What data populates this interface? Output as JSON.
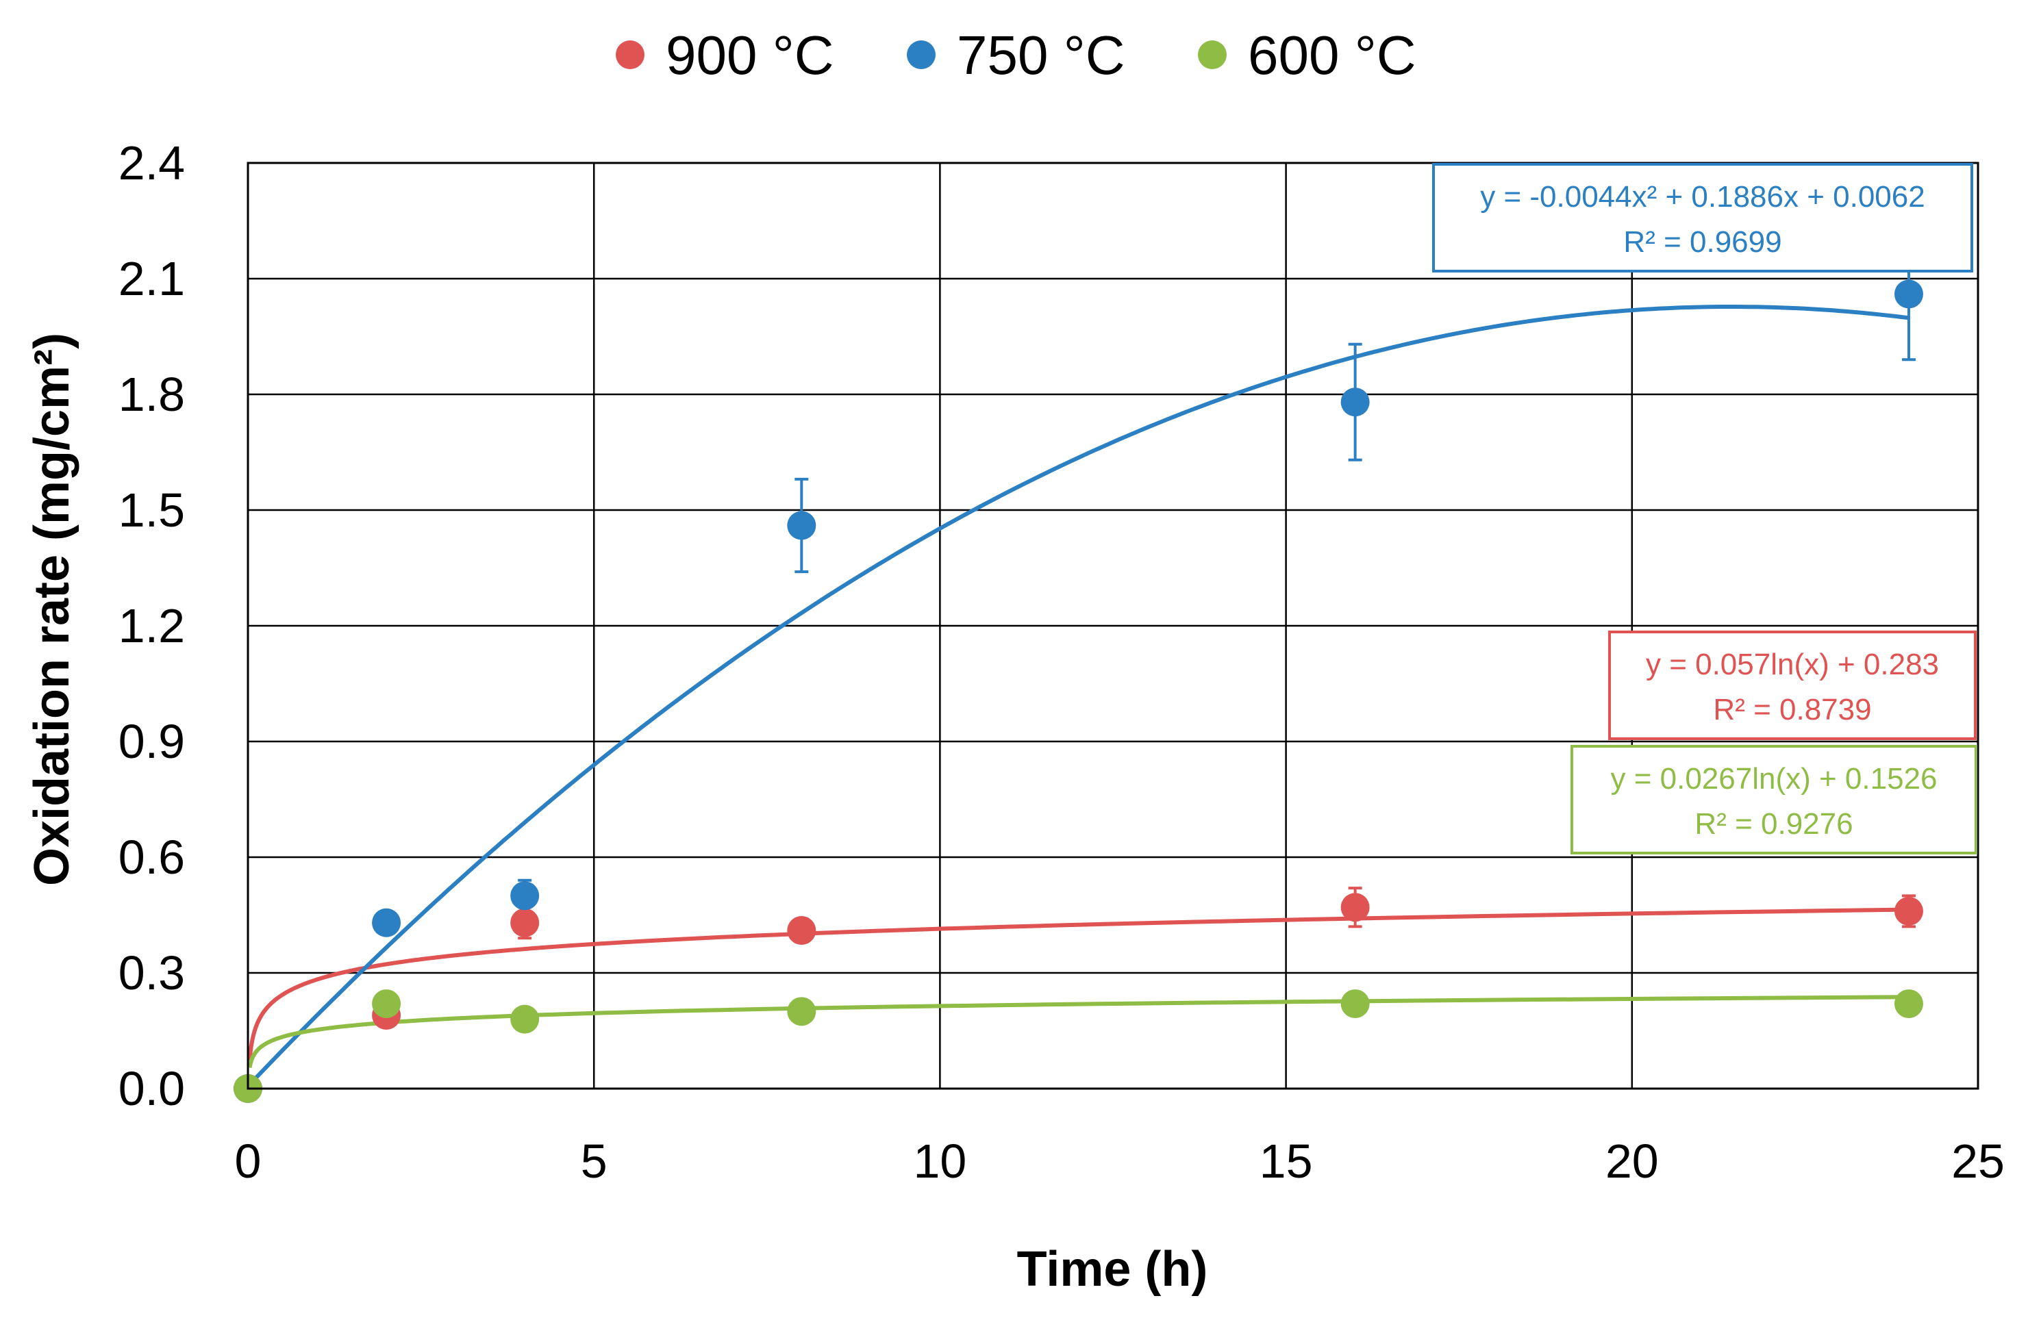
{
  "chart_data": {
    "type": "scatter",
    "title": "",
    "xlabel": "Time (h)",
    "ylabel": "Oxidation rate (mg/cm²)",
    "xlim": [
      0,
      25
    ],
    "ylim": [
      0,
      2.4
    ],
    "xticks": [
      "0",
      "5",
      "10",
      "15",
      "20",
      "25"
    ],
    "yticks": [
      "0.0",
      "0.3",
      "0.6",
      "0.9",
      "1.2",
      "1.5",
      "1.8",
      "2.1",
      "2.4"
    ],
    "grid": true,
    "legend_position": "top",
    "series": [
      {
        "name": "900 °C",
        "color": "#e05353",
        "x": [
          0,
          2,
          4,
          8,
          16,
          24
        ],
        "y": [
          0.0,
          0.19,
          0.43,
          0.41,
          0.47,
          0.46
        ],
        "err": [
          0,
          0.02,
          0.04,
          0.03,
          0.05,
          0.04
        ],
        "trend": {
          "type": "log",
          "a": 0.057,
          "b": 0.283
        },
        "equation": "y = 0.057ln(x) + 0.283",
        "r2": "R² = 0.8739"
      },
      {
        "name": "750 °C",
        "color": "#2b7fc3",
        "x": [
          0,
          2,
          4,
          8,
          16,
          24
        ],
        "y": [
          0.0,
          0.43,
          0.5,
          1.46,
          1.78,
          2.06
        ],
        "err": [
          0,
          0.0,
          0.04,
          0.12,
          0.15,
          0.17
        ],
        "trend": {
          "type": "poly2",
          "a": -0.0044,
          "b": 0.1886,
          "c": 0.0062
        },
        "equation": "y = -0.0044x² + 0.1886x + 0.0062",
        "r2": "R² = 0.9699"
      },
      {
        "name": "600 °C",
        "color": "#8fbc45",
        "x": [
          0,
          2,
          4,
          8,
          16,
          24
        ],
        "y": [
          0.0,
          0.22,
          0.18,
          0.2,
          0.22,
          0.22
        ],
        "err": [
          0,
          0.02,
          0.01,
          0.01,
          0.01,
          0.01
        ],
        "trend": {
          "type": "log",
          "a": 0.0267,
          "b": 0.1526
        },
        "equation": "y = 0.0267ln(x) + 0.1526",
        "r2": "R² = 0.9276"
      }
    ]
  }
}
